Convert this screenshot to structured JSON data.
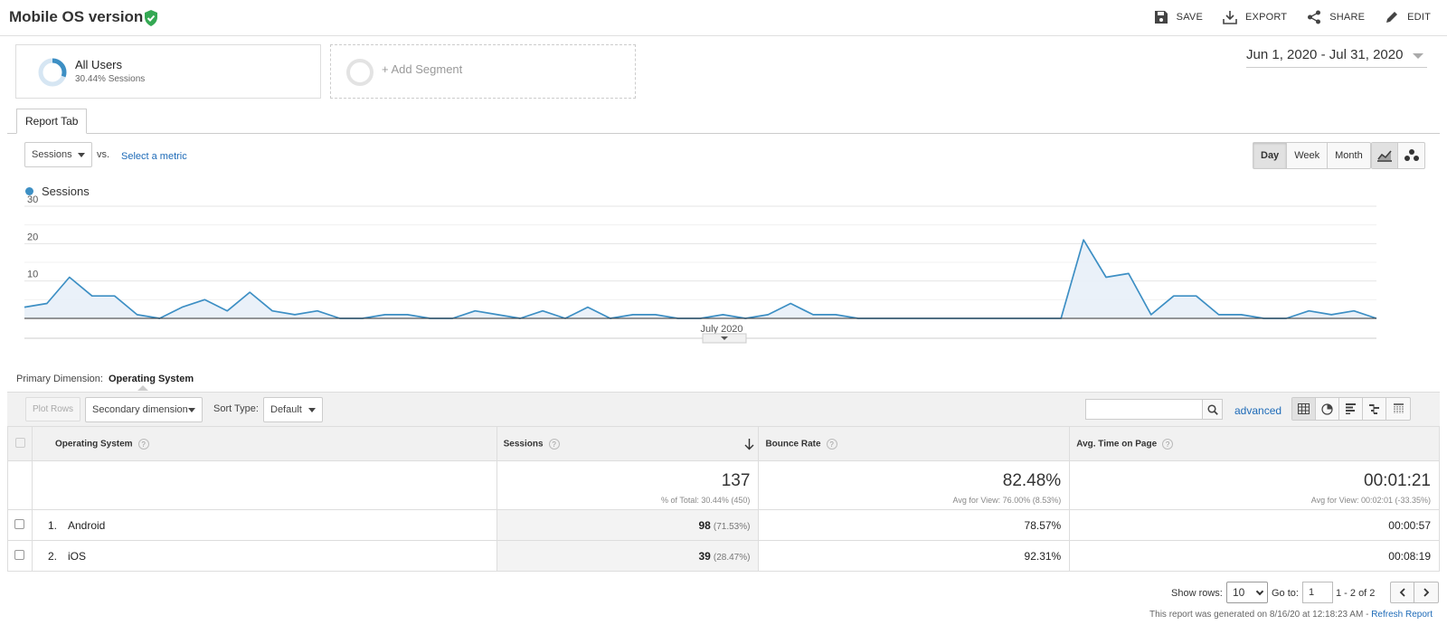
{
  "header": {
    "title": "Mobile OS version",
    "actions": {
      "save": "SAVE",
      "export": "EXPORT",
      "share": "SHARE",
      "edit": "EDIT"
    }
  },
  "segments": {
    "all_users": {
      "name": "All Users",
      "sub": "30.44% Sessions",
      "share": 0.3044
    },
    "add_segment": "+ Add Segment"
  },
  "date_range": "Jun 1, 2020 - Jul 31, 2020",
  "tab": "Report Tab",
  "metric_controls": {
    "metric": "Sessions",
    "vs": "vs.",
    "select_metric": "Select a metric",
    "granularity": [
      "Day",
      "Week",
      "Month"
    ],
    "active_granularity": "Day"
  },
  "colors": {
    "series": "#3d8fc4",
    "link": "#1e6bb8",
    "fill": "#e8f0f8"
  },
  "chart_data": {
    "type": "area",
    "title": "",
    "legend": [
      "Sessions"
    ],
    "x_tick_label": "July 2020",
    "ylim": [
      0,
      30
    ],
    "yticks": [
      10,
      20,
      30
    ],
    "series": [
      {
        "name": "Sessions",
        "values": [
          3,
          4,
          11,
          6,
          6,
          1,
          0,
          3,
          5,
          2,
          7,
          2,
          1,
          2,
          0,
          0,
          1,
          1,
          0,
          0,
          2,
          1,
          0,
          2,
          0,
          3,
          0,
          1,
          1,
          0,
          0,
          1,
          0,
          1,
          4,
          1,
          1,
          0,
          0,
          0,
          0,
          0,
          0,
          0,
          0,
          0,
          0,
          21,
          11,
          12,
          1,
          6,
          6,
          1,
          1,
          0,
          0,
          2,
          1,
          2,
          0
        ]
      }
    ]
  },
  "primary_dimension": {
    "label": "Primary Dimension:",
    "value": "Operating System"
  },
  "table_toolbar": {
    "plot_rows": "Plot Rows",
    "secondary_dimension": "Secondary dimension",
    "sort_type_label": "Sort Type:",
    "sort_type_value": "Default",
    "advanced": "advanced"
  },
  "table": {
    "columns": [
      "Operating System",
      "Sessions",
      "Bounce Rate",
      "Avg. Time on Page"
    ],
    "totals": {
      "sessions": "137",
      "sessions_sub": "% of Total: 30.44% (450)",
      "bounce_rate": "82.48%",
      "bounce_rate_sub": "Avg for View: 76.00% (8.53%)",
      "avg_time": "00:01:21",
      "avg_time_sub": "Avg for View: 00:02:01 (-33.35%)"
    },
    "rows": [
      {
        "rank": "1.",
        "name": "Android",
        "sessions": "98",
        "pct": "(71.53%)",
        "bounce": "78.57%",
        "time": "00:00:57"
      },
      {
        "rank": "2.",
        "name": "iOS",
        "sessions": "39",
        "pct": "(28.47%)",
        "bounce": "92.31%",
        "time": "00:08:19"
      }
    ]
  },
  "pagination": {
    "show_rows_label": "Show rows:",
    "show_rows_value": "10",
    "goto_label": "Go to:",
    "goto_value": "1",
    "range": "1 - 2 of 2"
  },
  "footer": {
    "generated": "This report was generated on 8/16/20 at 12:18:23 AM - ",
    "refresh": "Refresh Report"
  }
}
